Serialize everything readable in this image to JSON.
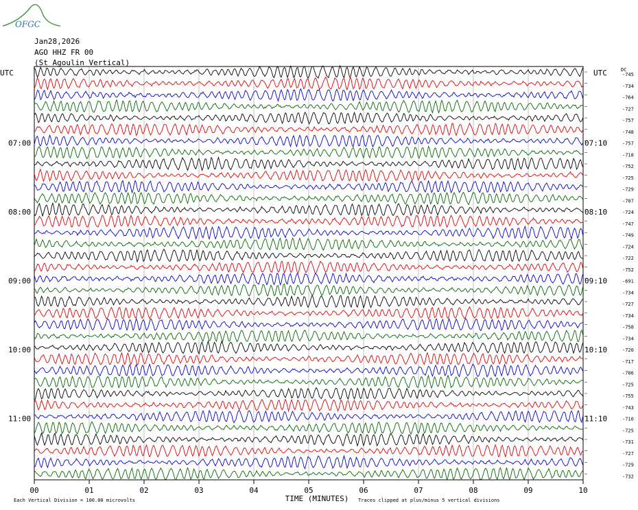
{
  "header": {
    "logo": "OFGC",
    "date": "Jan28,2026",
    "station": "AGO HHZ FR 00",
    "site": "(St Agoulin Vertical)"
  },
  "left_axis": {
    "title": "UTC",
    "labels": [
      "07:00",
      "08:00",
      "09:00",
      "10:00",
      "11:00"
    ]
  },
  "right_axis": {
    "title": "UTC",
    "labels": [
      "07:10",
      "08:10",
      "09:10",
      "10:10",
      "11:10"
    ]
  },
  "dc": {
    "title": "DC",
    "values": [
      "-745",
      "-734",
      "-764",
      "-727",
      "-757",
      "-748",
      "-757",
      "-718",
      "-752",
      "-725",
      "-729",
      "-707",
      "-724",
      "-747",
      "-749",
      "-724",
      "-722",
      "-752",
      "-691",
      "-734",
      "-727",
      "-734",
      "-758",
      "-734",
      "-720",
      "-717",
      "-706",
      "-725",
      "-755",
      "-743",
      "-710",
      "-725",
      "-731",
      "-727",
      "-729",
      "-732"
    ]
  },
  "trace_colors": [
    "#000000",
    "#dd0000",
    "#0000cc",
    "#006600"
  ],
  "x_axis": {
    "title": "TIME (MINUTES)",
    "ticks": [
      "00",
      "01",
      "02",
      "03",
      "04",
      "05",
      "06",
      "07",
      "08",
      "09",
      "10"
    ]
  },
  "footer": {
    "scale": "Each Vertical Division =  100.00 microvolts",
    "clip": "Traces clipped at plus/minus 5 vertical divisions"
  }
}
